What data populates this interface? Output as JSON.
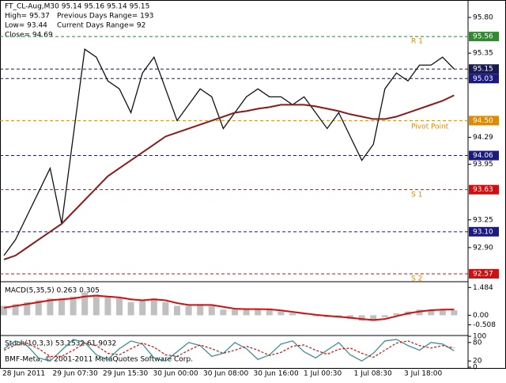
{
  "header": {
    "symbol": "FT_CL-Aug,M30  95.14 95.16 95.14 95.15",
    "high": "High= 95.37",
    "low": "Low= 93.44",
    "close": "Close= 94.69",
    "previous_range": "Previous Days Range= 193",
    "current_range": "Current Days Range= 92"
  },
  "footer": "BMF-Meta, © 2001-2011 MetaQuotes Software Corp.",
  "x_labels": [
    "28 Jun 2011",
    "29 Jun 07:30",
    "29 Jun 15:30",
    "30 Jun 00:00",
    "30 Jun 08:00",
    "30 Jun 16:00",
    "1 Jul 00:30",
    "1 Jul 08:30",
    "3 Jul 18:00"
  ],
  "chart_data": [
    {
      "type": "line",
      "annotations": [
        "R 1",
        "Pivot Point",
        "S 1",
        "S 2"
      ],
      "ylim": [
        92.48,
        96.02
      ],
      "yticks": [
        {
          "value": 95.8,
          "label": "95.80"
        },
        95.35,
        94.29,
        93.95,
        93.25,
        {
          "value": 92.9,
          "label": "92.90"
        }
      ],
      "levels": [
        {
          "value": 95.56,
          "color": "#2e8b2e"
        },
        {
          "value": 95.15,
          "color": "#1a1a50"
        },
        {
          "value": 95.03,
          "color": "#1a1a80"
        },
        {
          "value": 94.5,
          "label": "94.50",
          "color": "#e08a00"
        },
        {
          "value": 94.06,
          "color": "#1a1a80"
        },
        {
          "value": 93.63,
          "color": "#d01010"
        },
        {
          "value": 93.1,
          "label": "93.10",
          "color": "#1a1a80"
        },
        {
          "value": 92.57,
          "color": "#d01010"
        }
      ],
      "series": [
        {
          "color": "#111111",
          "values": [
            92.8,
            93.0,
            93.3,
            93.6,
            93.9,
            93.2,
            94.3,
            95.4,
            95.3,
            95.0,
            94.9,
            94.6,
            95.1,
            95.3,
            94.9,
            94.5,
            94.7,
            94.9,
            94.8,
            94.4,
            94.6,
            94.8,
            94.9,
            94.8,
            94.8,
            94.7,
            94.8,
            94.6,
            94.4,
            94.6,
            94.3,
            94.0,
            94.2,
            94.9,
            95.1,
            95.0,
            95.2,
            95.2,
            95.3,
            95.15
          ]
        },
        {
          "color": "#8b1a1a",
          "values": [
            92.75,
            92.8,
            92.9,
            93.0,
            93.1,
            93.2,
            93.35,
            93.5,
            93.65,
            93.8,
            93.9,
            94.0,
            94.1,
            94.2,
            94.3,
            94.35,
            94.4,
            94.45,
            94.5,
            94.55,
            94.6,
            94.62,
            94.65,
            94.67,
            94.7,
            94.7,
            94.7,
            94.68,
            94.65,
            94.62,
            94.58,
            94.55,
            94.52,
            94.52,
            94.55,
            94.6,
            94.65,
            94.7,
            94.75,
            94.82
          ]
        }
      ]
    },
    {
      "type": "macd",
      "title": "MACD(5,35,5) 0.263 0.305",
      "ylim": [
        -1.04,
        1.75
      ],
      "yticks": [
        1.484,
        {
          "value": 0,
          "label": "0.00"
        },
        -0.508
      ],
      "series": [
        {
          "color": "#c0c0c0",
          "values": [
            0.5,
            0.6,
            0.7,
            0.8,
            0.9,
            0.9,
            1.0,
            1.2,
            1.1,
            1.0,
            0.9,
            0.7,
            0.8,
            0.9,
            0.7,
            0.5,
            0.5,
            0.6,
            0.5,
            0.3,
            0.3,
            0.35,
            0.35,
            0.3,
            0.2,
            0.1,
            0.0,
            -0.05,
            -0.1,
            -0.1,
            -0.2,
            -0.3,
            -0.3,
            -0.1,
            0.1,
            0.2,
            0.3,
            0.3,
            0.3,
            0.26
          ]
        },
        {
          "color": "#d01010",
          "values": [
            0.4,
            0.5,
            0.6,
            0.7,
            0.8,
            0.85,
            0.9,
            1.0,
            1.05,
            1.0,
            0.95,
            0.85,
            0.8,
            0.85,
            0.8,
            0.65,
            0.55,
            0.55,
            0.55,
            0.45,
            0.35,
            0.33,
            0.33,
            0.32,
            0.26,
            0.18,
            0.1,
            0.03,
            -0.03,
            -0.08,
            -0.13,
            -0.2,
            -0.25,
            -0.2,
            -0.05,
            0.1,
            0.2,
            0.27,
            0.3,
            0.305
          ]
        }
      ]
    },
    {
      "type": "stoch",
      "title": "Stoch(10,3,3) 53.1532 61.9032",
      "ylim": [
        0,
        100
      ],
      "yticks": [
        100,
        80,
        20,
        0
      ],
      "series": [
        {
          "color": "#2e8b8b",
          "values": [
            60,
            85,
            70,
            30,
            20,
            55,
            90,
            80,
            40,
            25,
            60,
            85,
            75,
            30,
            20,
            50,
            80,
            70,
            35,
            45,
            80,
            60,
            25,
            40,
            75,
            85,
            50,
            30,
            55,
            80,
            40,
            20,
            45,
            85,
            90,
            70,
            55,
            80,
            75,
            53
          ]
        },
        {
          "color": "#d01010",
          "values": [
            55,
            72,
            78,
            60,
            35,
            35,
            55,
            78,
            70,
            45,
            40,
            60,
            78,
            65,
            40,
            35,
            55,
            72,
            60,
            45,
            55,
            68,
            55,
            38,
            48,
            68,
            72,
            55,
            42,
            58,
            62,
            45,
            32,
            55,
            78,
            85,
            70,
            62,
            70,
            62
          ]
        }
      ]
    }
  ]
}
